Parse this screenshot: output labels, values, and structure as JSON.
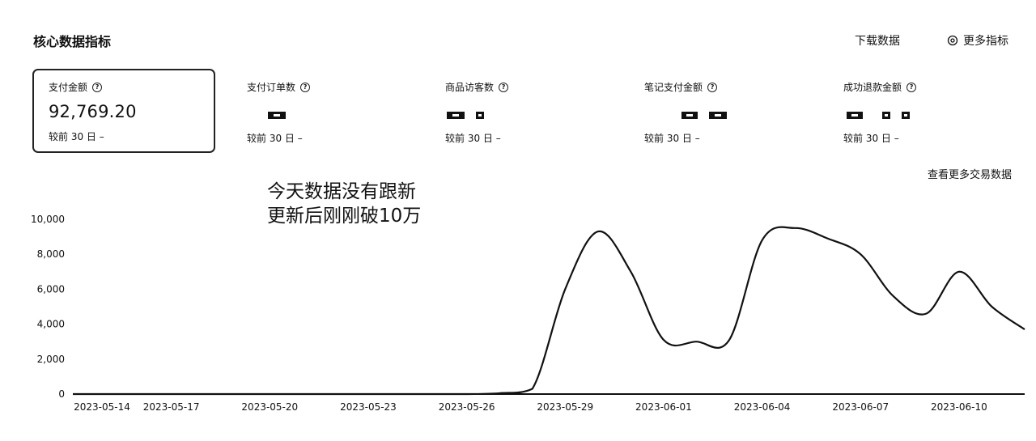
{
  "header": {
    "title": "核心数据指标",
    "download_label": "下载数据",
    "more_metrics_label": "更多指标",
    "more_metrics_icon": "gear-icon"
  },
  "cards": [
    {
      "label": "支付金额",
      "value": "92,769.20",
      "compare": "较前 30 日 –"
    },
    {
      "label": "支付订单数",
      "value": "",
      "compare": "较前 30 日 –"
    },
    {
      "label": "商品访客数",
      "value": "",
      "compare": "较前 30 日 –"
    },
    {
      "label": "笔记支付金额",
      "value": "",
      "compare": "较前 30 日 –"
    },
    {
      "label": "成功退款金额",
      "value": "",
      "compare": "较前 30 日 –"
    }
  ],
  "see_more_label": "查看更多交易数据",
  "overlay_text": {
    "line1": "今天数据没有跟新",
    "line2": "更新后刚刚破10万"
  },
  "chart_data": {
    "type": "line",
    "title": "",
    "xlabel": "",
    "ylabel": "",
    "ylim": [
      0,
      10000
    ],
    "y_ticks": [
      "0",
      "2,000",
      "4,000",
      "6,000",
      "8,000",
      "10,000"
    ],
    "x_tick_labels": [
      "2023-05-14",
      "2023-05-17",
      "2023-05-20",
      "2023-05-23",
      "2023-05-26",
      "2023-05-29",
      "2023-06-01",
      "2023-06-04",
      "2023-06-07",
      "2023-06-10"
    ],
    "x": [
      "2023-05-14",
      "2023-05-15",
      "2023-05-16",
      "2023-05-17",
      "2023-05-18",
      "2023-05-19",
      "2023-05-20",
      "2023-05-21",
      "2023-05-22",
      "2023-05-23",
      "2023-05-24",
      "2023-05-25",
      "2023-05-26",
      "2023-05-27",
      "2023-05-28",
      "2023-05-29",
      "2023-05-30",
      "2023-05-31",
      "2023-06-01",
      "2023-06-02",
      "2023-06-03",
      "2023-06-04",
      "2023-06-05",
      "2023-06-06",
      "2023-06-07",
      "2023-06-08",
      "2023-06-09",
      "2023-06-10",
      "2023-06-11",
      "2023-06-12"
    ],
    "series": [
      {
        "values": [
          0,
          0,
          0,
          0,
          0,
          0,
          0,
          0,
          0,
          0,
          0,
          0,
          0,
          50,
          300,
          6000,
          9300,
          7000,
          3100,
          3000,
          3100,
          8800,
          9500,
          8900,
          8000,
          5600,
          4600,
          7000,
          5000,
          3700
        ]
      }
    ],
    "line_color": "#111111"
  }
}
